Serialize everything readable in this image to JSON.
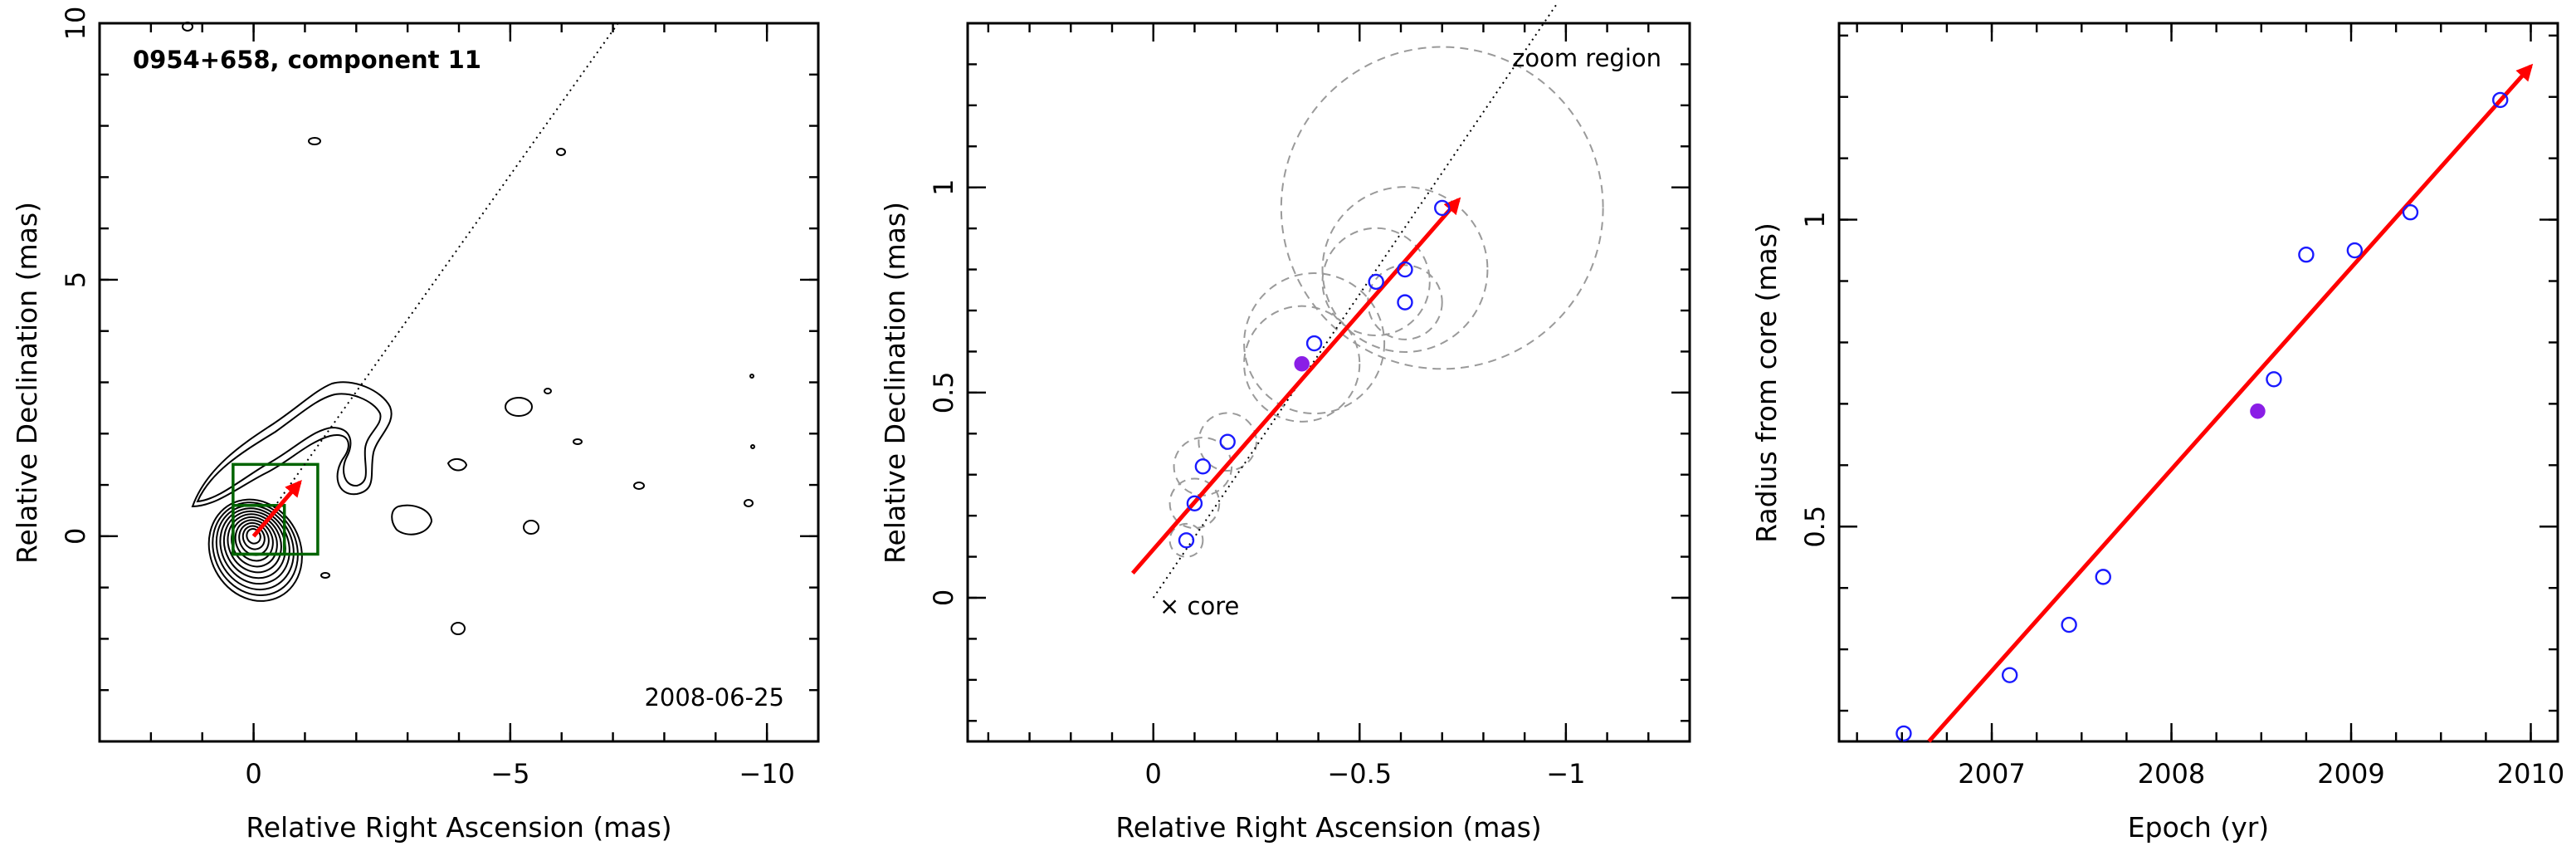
{
  "chart_data": [
    {
      "type": "contour",
      "title": "0954+658, component 11",
      "date_label": "2008-06-25",
      "xlabel": "Relative Right Ascension (mas)",
      "ylabel": "Relative Declination (mas)",
      "xlim": [
        3,
        -11
      ],
      "ylim": [
        -4,
        10
      ],
      "xticks": [
        0,
        -5,
        -10
      ],
      "yticks": [
        0,
        5,
        10
      ],
      "xtick_labels": [
        "0",
        "−5",
        "−10"
      ],
      "ytick_labels": [
        "0",
        "5",
        "10"
      ],
      "trajectory_line": {
        "from": [
          0,
          0
        ],
        "to": [
          -7.1,
          10
        ]
      },
      "velocity_arrow": {
        "from": [
          0,
          0
        ],
        "to": [
          -0.9,
          1.05
        ],
        "color": "#ff0000"
      },
      "zoom_box": {
        "x": [
          0.4,
          -1.25
        ],
        "y": [
          -0.35,
          1.4
        ],
        "color": "#006400"
      },
      "zoom_box2": {
        "x": [
          0.4,
          -0.6
        ],
        "y": [
          -0.35,
          0.6
        ],
        "color": "#006400"
      }
    },
    {
      "type": "scatter",
      "xlabel": "Relative Right Ascension (mas)",
      "ylabel": "Relative Declination (mas)",
      "xlim": [
        0.45,
        -1.3
      ],
      "ylim": [
        -0.35,
        1.4
      ],
      "xticks": [
        0,
        -0.5,
        -1
      ],
      "yticks": [
        0,
        0.5,
        1
      ],
      "xtick_labels": [
        "0",
        "−0.5",
        "−1"
      ],
      "ytick_labels": [
        "0",
        "0.5",
        "1"
      ],
      "annotations": {
        "core": "× core",
        "zoom": "zoom region"
      },
      "points_open": [
        {
          "x": -0.08,
          "y": 0.14,
          "r": 0.04
        },
        {
          "x": -0.1,
          "y": 0.23,
          "r": 0.06
        },
        {
          "x": -0.12,
          "y": 0.32,
          "r": 0.07
        },
        {
          "x": -0.18,
          "y": 0.38,
          "r": 0.07
        },
        {
          "x": -0.39,
          "y": 0.62,
          "r": 0.17
        },
        {
          "x": -0.54,
          "y": 0.77,
          "r": 0.13
        },
        {
          "x": -0.61,
          "y": 0.8,
          "r": 0.2
        },
        {
          "x": -0.61,
          "y": 0.72,
          "r": 0.09
        },
        {
          "x": -0.7,
          "y": 0.95,
          "r": 0.39
        }
      ],
      "points_filled": [
        {
          "x": -0.36,
          "y": 0.57,
          "r": 0.14
        }
      ],
      "trajectory_line": {
        "from": [
          0,
          0
        ],
        "to": [
          -0.98,
          1.45
        ]
      },
      "velocity_arrow": {
        "from": [
          0.05,
          0.06
        ],
        "to": [
          -0.74,
          0.97
        ],
        "color": "#ff0000"
      }
    },
    {
      "type": "scatter",
      "xlabel": "Epoch (yr)",
      "ylabel": "Radius from core (mas)",
      "xlim": [
        2006.15,
        2010.15
      ],
      "ylim": [
        0.15,
        1.32
      ],
      "xticks": [
        2007,
        2008,
        2009,
        2010
      ],
      "yticks": [
        0.5,
        1
      ],
      "xtick_labels": [
        "2007",
        "2008",
        "2009",
        "2010"
      ],
      "ytick_labels": [
        "0.5",
        "1"
      ],
      "points_open": [
        {
          "x": 2006.51,
          "y": 0.163
        },
        {
          "x": 2007.1,
          "y": 0.258
        },
        {
          "x": 2007.43,
          "y": 0.34
        },
        {
          "x": 2007.62,
          "y": 0.418
        },
        {
          "x": 2008.57,
          "y": 0.74
        },
        {
          "x": 2008.75,
          "y": 0.943
        },
        {
          "x": 2009.02,
          "y": 0.95
        },
        {
          "x": 2009.33,
          "y": 1.012
        },
        {
          "x": 2009.83,
          "y": 1.195
        }
      ],
      "points_filled": [
        {
          "x": 2008.48,
          "y": 0.688
        }
      ],
      "fit_arrow": {
        "from": [
          2006.65,
          0.15
        ],
        "to": [
          2010.0,
          1.25
        ],
        "color": "#ff0000"
      }
    }
  ]
}
